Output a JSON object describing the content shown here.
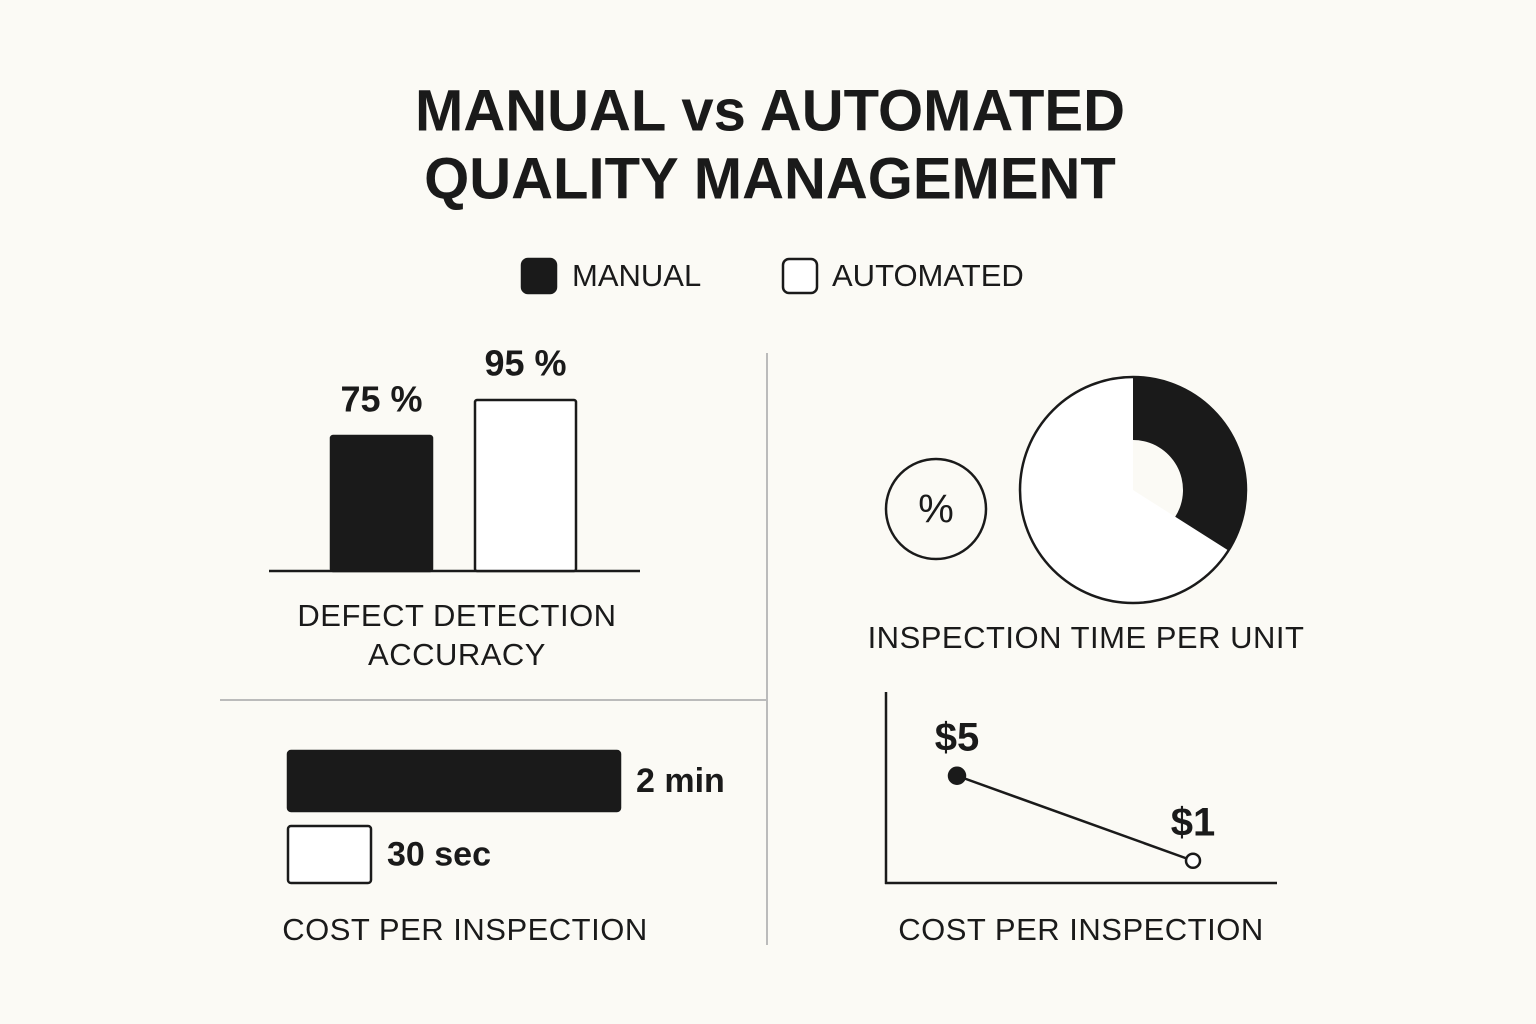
{
  "header": {
    "title_lines": [
      "MANUAL vs AUTOMATED",
      "QUALITY MANAGEMENT"
    ]
  },
  "legend": [
    {
      "label": "MANUAL",
      "color": "#1a1a1a"
    },
    {
      "label": "AUTOMATED",
      "color": "#ffffff"
    }
  ],
  "chart_data": [
    {
      "type": "bar",
      "title": "DEFECT DETECTION ACCURACY",
      "values": [
        75,
        95
      ],
      "value_labels": [
        "75 %",
        "95 %"
      ]
    },
    {
      "type": "pie",
      "title": "INSPECTION TIME PER UNIT",
      "icon": "%",
      "values": [
        34,
        66
      ]
    },
    {
      "type": "bar",
      "orientation": "horizontal",
      "title": "COST PER INSPECTION",
      "values": [
        2,
        0.5
      ],
      "value_labels": [
        "2 min",
        "30 sec"
      ]
    },
    {
      "type": "line",
      "title": "COST PER INSPECTION",
      "values": [
        5,
        1
      ],
      "value_labels": [
        "$5",
        "$1"
      ]
    }
  ]
}
